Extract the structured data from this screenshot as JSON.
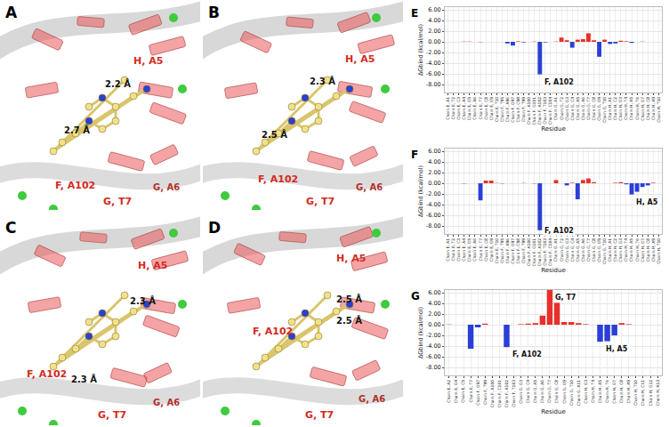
{
  "structures": [
    {
      "panel_label": "A",
      "residue_labels": [
        "H, A5",
        "F, A102",
        "G, T7",
        "G, A6"
      ],
      "distance_labels": [
        "2.7 Å",
        "2.2 Å"
      ]
    },
    {
      "panel_label": "B",
      "residue_labels": [
        "H, A5",
        "F, A102",
        "G, T7",
        "G, A6"
      ],
      "distance_labels": [
        "2.5 Å",
        "2.3 Å"
      ]
    },
    {
      "panel_label": "C",
      "residue_labels": [
        "H, A5",
        "F, A102",
        "G, T7",
        "G, A6"
      ],
      "distance_labels": [
        "2.3 Å",
        "2.3 Å"
      ]
    },
    {
      "panel_label": "D",
      "residue_labels": [
        "H, A5",
        "F, A102",
        "G, T7",
        "G, A6"
      ],
      "distance_labels": [
        "2.5 Å",
        "2.5 Å"
      ]
    }
  ],
  "chart_data": [
    {
      "type": "bar",
      "panel_label": "E",
      "x_label": "Residue",
      "y_label": "ΔGbind (kcal/mol)",
      "categories": [
        "Chain E, A1",
        "Chain E, T2",
        "Chain E, C3",
        "Chain E, A4",
        "Chain E, G5",
        "Chain E, A6",
        "Chain E, T7",
        "Chain E, C8",
        "Chain E, G9",
        "Chain E, T10",
        "Chain F, T95",
        "Chain F, A96",
        "Chain F, G97",
        "Chain F, C98",
        "Chain F, T99",
        "Chain F, A100",
        "Chain F, G101",
        "Chain F, A102",
        "Chain F, T103",
        "Chain F, C104",
        "Chain G, A1",
        "Chain G, T2",
        "Chain G, G3",
        "Chain G, C4",
        "Chain G, A5",
        "Chain G, A6",
        "Chain G, T7",
        "Chain G, C8",
        "Chain G, G9",
        "Chain G, T10",
        "Chain H, A1",
        "Chain H, C2",
        "Chain H, G3",
        "Chain H, T4",
        "Chain H, A5",
        "Chain H, T6",
        "Chain H, G7",
        "Chain H, C8",
        "Chain H, A9",
        "Chain H, T10"
      ],
      "values": [
        0,
        0,
        0,
        0.05,
        0.05,
        0,
        -0.05,
        0,
        0,
        0,
        0,
        -0.3,
        -0.7,
        0.1,
        -0.1,
        0,
        0.05,
        -6.1,
        -0.1,
        0,
        0.05,
        0.8,
        0.3,
        -1.1,
        0.4,
        0.5,
        1.6,
        0.3,
        -2.8,
        0.4,
        -0.4,
        -0.3,
        0.2,
        0.1,
        -0.2,
        0,
        0.05,
        0,
        0,
        0
      ],
      "colors": [
        "#e8302a",
        "#e8302a",
        "#e8302a",
        "#e8302a",
        "#e8302a",
        "#e8302a",
        "#2a3fd6",
        "#e8302a",
        "#e8302a",
        "#e8302a",
        "#e8302a",
        "#2a3fd6",
        "#2a3fd6",
        "#e8302a",
        "#2a3fd6",
        "#e8302a",
        "#e8302a",
        "#2a3fd6",
        "#2a3fd6",
        "#e8302a",
        "#e8302a",
        "#e8302a",
        "#e8302a",
        "#2a3fd6",
        "#e8302a",
        "#e8302a",
        "#e8302a",
        "#e8302a",
        "#2a3fd6",
        "#e8302a",
        "#2a3fd6",
        "#2a3fd6",
        "#e8302a",
        "#e8302a",
        "#2a3fd6",
        "#e8302a",
        "#e8302a",
        "#e8302a",
        "#e8302a",
        "#e8302a"
      ],
      "ylim": [
        -9.5,
        6.5
      ],
      "yticks": [
        {
          "value": -8,
          "label": "-8.00"
        },
        {
          "value": -6,
          "label": "-6.00"
        },
        {
          "value": -4,
          "label": "-4.00"
        },
        {
          "value": -2,
          "label": "-2.00"
        },
        {
          "value": 0,
          "label": "0.00"
        },
        {
          "value": 2,
          "label": "2.00"
        },
        {
          "value": 4,
          "label": "4.00"
        },
        {
          "value": 6,
          "label": "6.00"
        }
      ],
      "grid": true,
      "annotations": [
        {
          "text": "F, A102",
          "category": "Chain F, A102"
        }
      ]
    },
    {
      "type": "bar",
      "panel_label": "F",
      "x_label": "Residue",
      "y_label": "ΔGbind (kcal/mol)",
      "categories": [
        "Chain E, A1",
        "Chain E, T2",
        "Chain E, C3",
        "Chain E, A4",
        "Chain E, G5",
        "Chain E, A6",
        "Chain E, T7",
        "Chain E, C8",
        "Chain E, G9",
        "Chain E, T10",
        "Chain F, T95",
        "Chain F, A96",
        "Chain F, G97",
        "Chain F, C98",
        "Chain F, T99",
        "Chain F, A100",
        "Chain F, G101",
        "Chain F, A102",
        "Chain F, T103",
        "Chain F, C104",
        "Chain G, A1",
        "Chain G, T2",
        "Chain G, G3",
        "Chain G, C4",
        "Chain G, A5",
        "Chain G, A6",
        "Chain G, T7",
        "Chain G, C8",
        "Chain G, G9",
        "Chain G, T10",
        "Chain H, A1",
        "Chain H, C2",
        "Chain H, G3",
        "Chain H, T4",
        "Chain H, A5",
        "Chain H, T6",
        "Chain H, G7",
        "Chain H, C8",
        "Chain H, A9",
        "Chain H, T10"
      ],
      "values": [
        0,
        0,
        0,
        -0.05,
        0,
        0,
        -3.2,
        0.5,
        0.5,
        0.05,
        -0.05,
        0,
        0,
        0,
        0.05,
        0,
        -0.05,
        -8.8,
        0,
        0,
        0.6,
        0,
        -0.4,
        0.1,
        -3.0,
        0.6,
        0.9,
        0.2,
        0,
        0,
        0,
        0.1,
        0.2,
        -0.2,
        -2.1,
        -1.6,
        -0.7,
        -0.4,
        0.1,
        0
      ],
      "colors": [
        "#e8302a",
        "#e8302a",
        "#e8302a",
        "#2a3fd6",
        "#e8302a",
        "#e8302a",
        "#2a3fd6",
        "#e8302a",
        "#e8302a",
        "#e8302a",
        "#2a3fd6",
        "#e8302a",
        "#e8302a",
        "#e8302a",
        "#e8302a",
        "#e8302a",
        "#2a3fd6",
        "#2a3fd6",
        "#e8302a",
        "#e8302a",
        "#e8302a",
        "#e8302a",
        "#2a3fd6",
        "#e8302a",
        "#2a3fd6",
        "#e8302a",
        "#e8302a",
        "#e8302a",
        "#e8302a",
        "#e8302a",
        "#e8302a",
        "#e8302a",
        "#e8302a",
        "#2a3fd6",
        "#2a3fd6",
        "#2a3fd6",
        "#2a3fd6",
        "#2a3fd6",
        "#e8302a",
        "#e8302a"
      ],
      "ylim": [
        -9.5,
        6.5
      ],
      "yticks": [
        {
          "value": -8,
          "label": "-8.00"
        },
        {
          "value": -6,
          "label": "-6.00"
        },
        {
          "value": -4,
          "label": "-4.00"
        },
        {
          "value": -2,
          "label": "-2.00"
        },
        {
          "value": 0,
          "label": "0.00"
        },
        {
          "value": 2,
          "label": "2.00"
        },
        {
          "value": 4,
          "label": "4.00"
        },
        {
          "value": 6,
          "label": "6.00"
        }
      ],
      "grid": true,
      "annotations": [
        {
          "text": "F, A102",
          "category": "Chain F, A102"
        },
        {
          "text": "H, A5",
          "category": "Chain H, A5"
        }
      ]
    },
    {
      "type": "bar",
      "panel_label": "G",
      "x_label": "Residue",
      "y_label": "ΔGbind (kcal/mol)",
      "categories": [
        "Chain E, A2",
        "Chain E, G4",
        "Chain E, C5",
        "Chain E, T7",
        "Chain F, G97",
        "Chain F, T99",
        "Chain F, A100",
        "Chain F, C101",
        "Chain F, A102",
        "Chain F, T103",
        "Chain G, G3",
        "Chain G, C4",
        "Chain G, A5",
        "Chain G, A6",
        "Chain G, T7",
        "Chain G, C8",
        "Chain G, G9",
        "Chain G, T10",
        "Chain G, A11",
        "Chain H, G3",
        "Chain H, T4",
        "Chain H, A5",
        "Chain H, T6",
        "Chain H, G7",
        "Chain H, C8",
        "Chain H, A9",
        "Chain H, T10",
        "Chain H, C11",
        "Chain H, G12",
        "Chain H, A13"
      ],
      "values": [
        0.05,
        0,
        0,
        -4.5,
        -0.5,
        0.2,
        0,
        0,
        -4.2,
        0,
        0.1,
        0.2,
        0.3,
        1.7,
        6.5,
        4.3,
        0.5,
        0.5,
        0.3,
        0.1,
        0,
        -3.2,
        -3.1,
        -2.0,
        0.3,
        0.1,
        0,
        0,
        0,
        0
      ],
      "colors": [
        "#e8302a",
        "#e8302a",
        "#e8302a",
        "#2a3fd6",
        "#2a3fd6",
        "#e8302a",
        "#e8302a",
        "#e8302a",
        "#2a3fd6",
        "#e8302a",
        "#e8302a",
        "#e8302a",
        "#e8302a",
        "#e8302a",
        "#e8302a",
        "#e8302a",
        "#e8302a",
        "#e8302a",
        "#e8302a",
        "#e8302a",
        "#e8302a",
        "#2a3fd6",
        "#2a3fd6",
        "#2a3fd6",
        "#e8302a",
        "#e8302a",
        "#e8302a",
        "#e8302a",
        "#e8302a",
        "#e8302a"
      ],
      "ylim": [
        -9.5,
        6.5
      ],
      "yticks": [
        {
          "value": -8,
          "label": "-8.00"
        },
        {
          "value": -6,
          "label": "-6.00"
        },
        {
          "value": -4,
          "label": "-4.00"
        },
        {
          "value": -2,
          "label": "-2.00"
        },
        {
          "value": 0,
          "label": "0.00"
        },
        {
          "value": 2,
          "label": "2.00"
        },
        {
          "value": 4,
          "label": "4.00"
        },
        {
          "value": 6,
          "label": "6.00"
        }
      ],
      "grid": true,
      "annotations": [
        {
          "text": "F, A102",
          "category": "Chain F, A102"
        },
        {
          "text": "G, T7",
          "category": "Chain G, T7"
        },
        {
          "text": "H, A5",
          "category": "Chain H, A5"
        }
      ]
    }
  ]
}
